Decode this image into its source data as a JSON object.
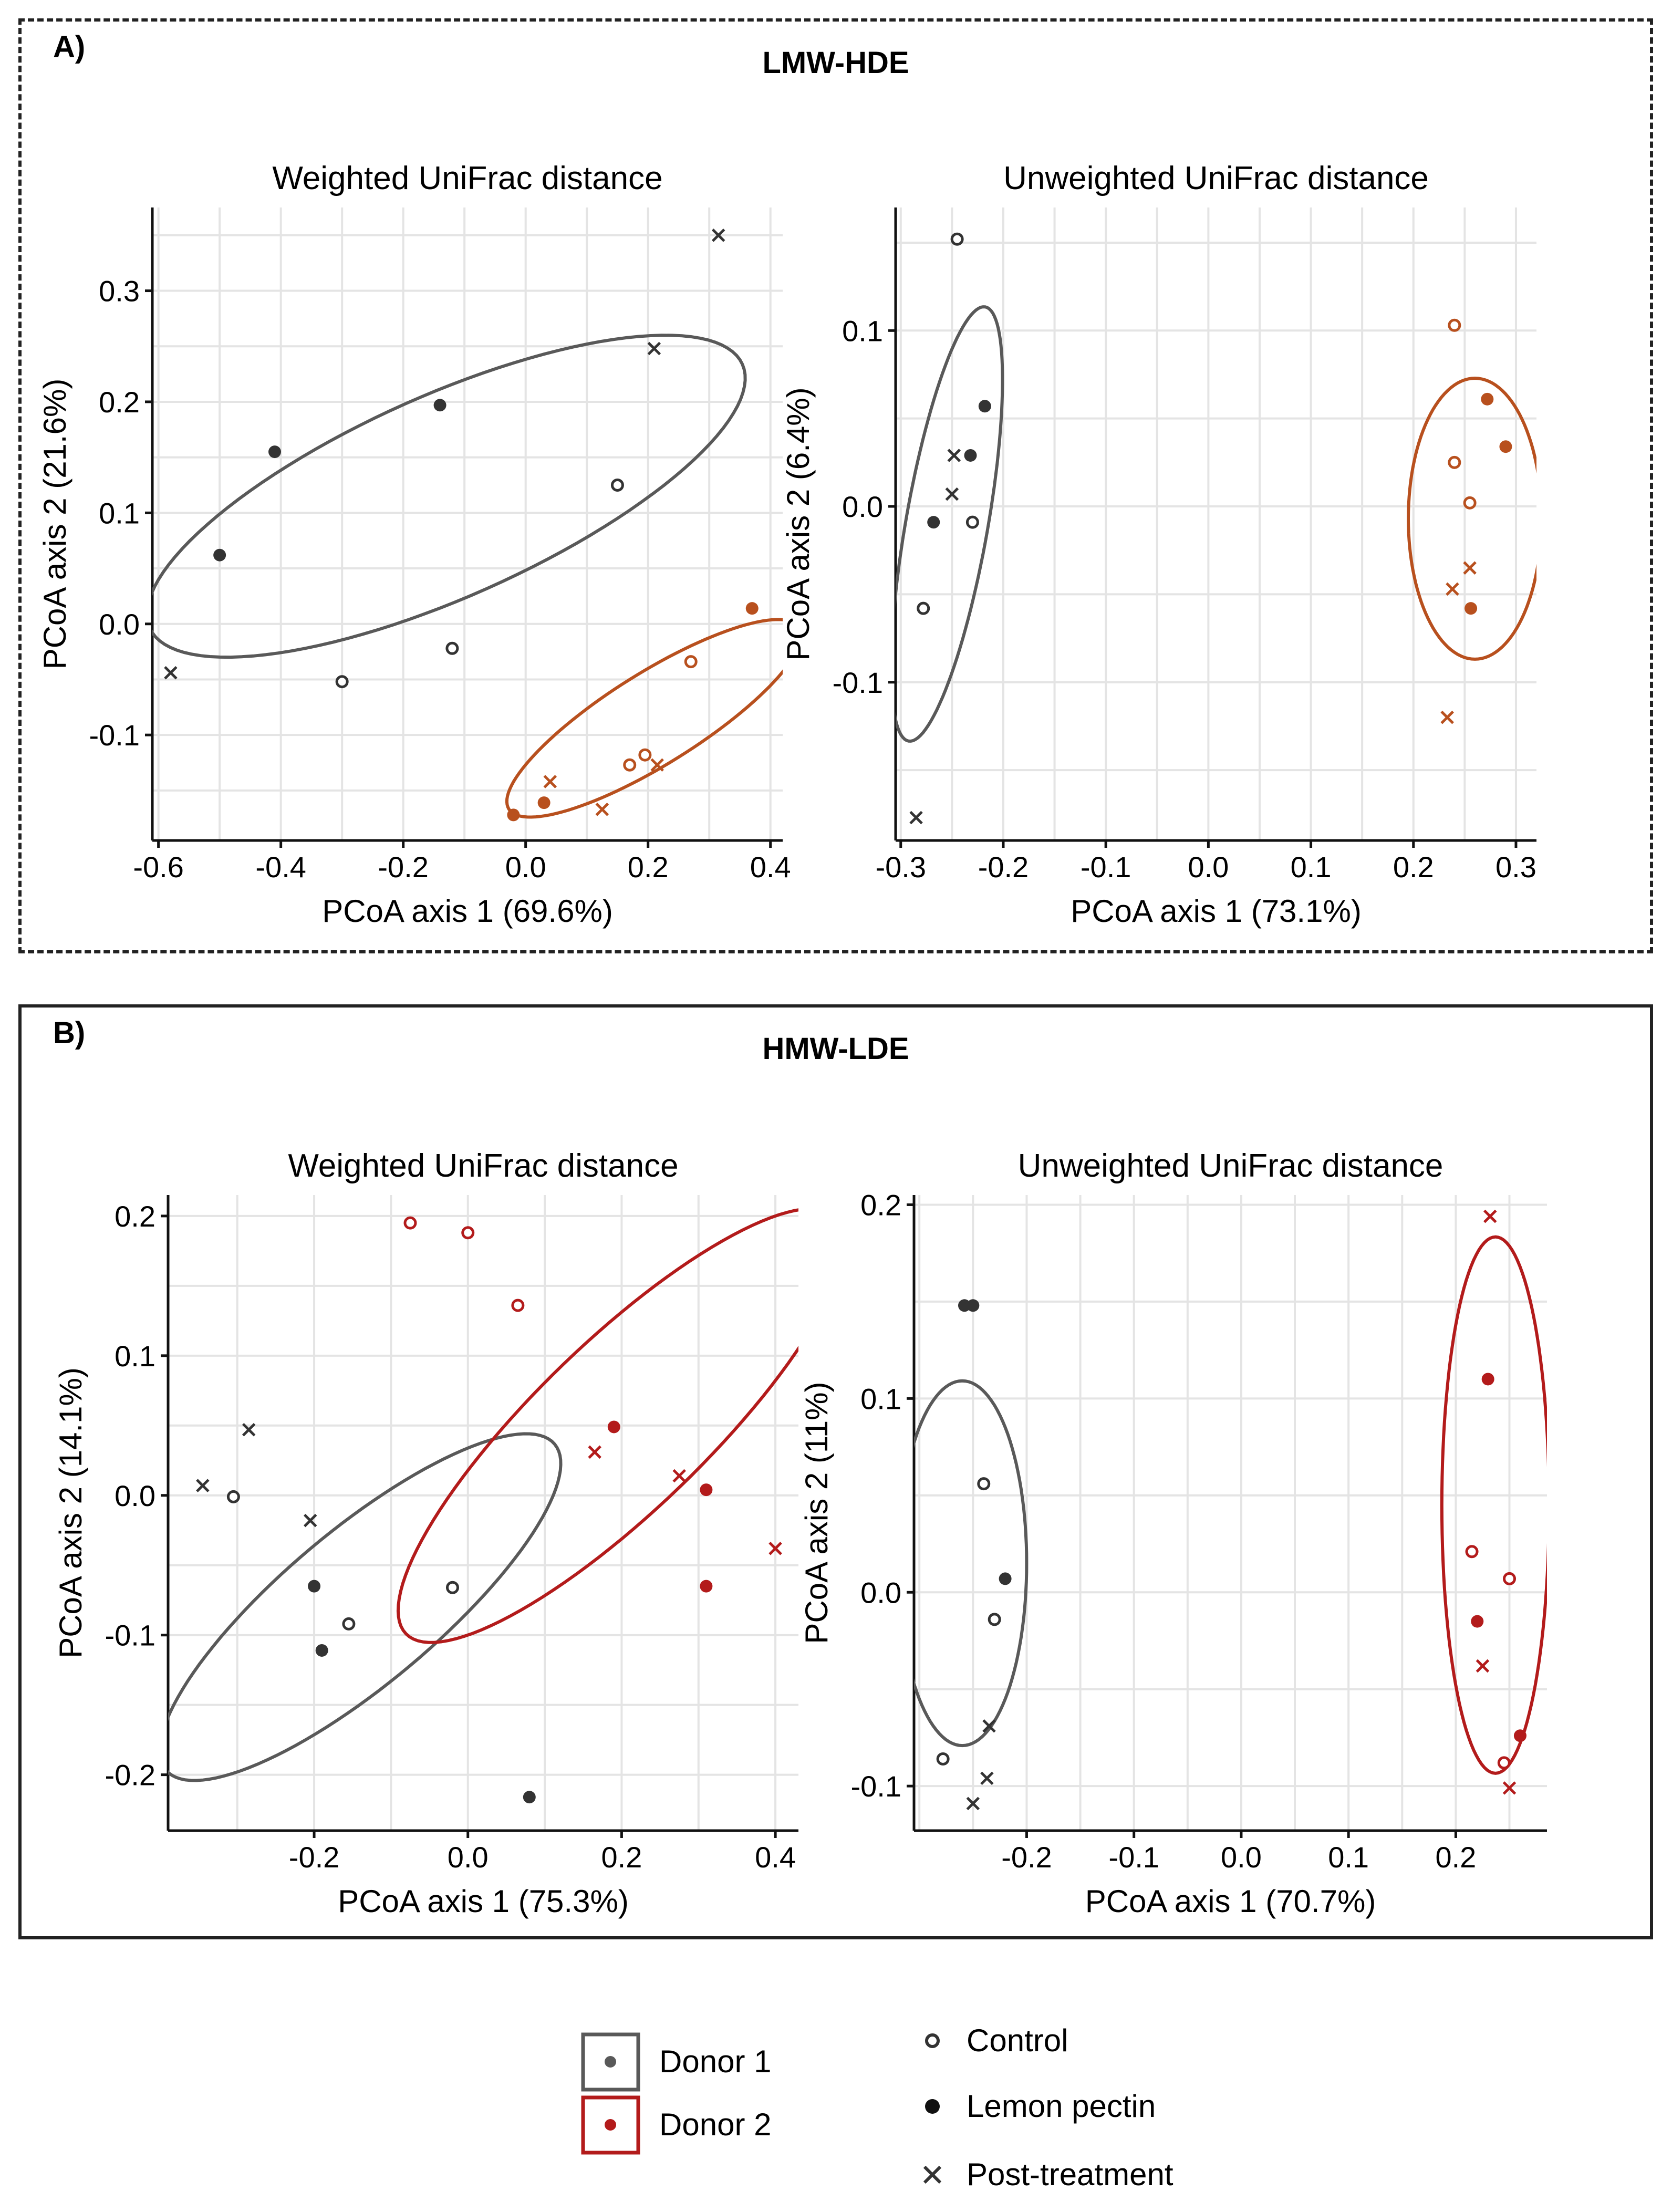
{
  "panels": [
    {
      "letter": "A)",
      "title": "LMW-HDE"
    },
    {
      "letter": "B)",
      "title": "HMW-LDE"
    }
  ],
  "colors": {
    "donor1": "#595959",
    "donor1_point": "#333333",
    "donor2_a": "#b8501e",
    "donor2_b": "#b31b1b"
  },
  "legend": {
    "donors": [
      {
        "label": "Donor 1",
        "color": "#595959"
      },
      {
        "label": "Donor 2",
        "color": "#b31b1b"
      }
    ],
    "treatments": [
      {
        "label": "Control",
        "shape": "circle-open"
      },
      {
        "label": "Lemon pectin",
        "shape": "circle-filled"
      },
      {
        "label": "Post-treatment",
        "shape": "x"
      }
    ]
  },
  "chart_data": [
    {
      "type": "scatter",
      "title": "Weighted UniFrac distance",
      "xlabel": "PCoA axis 1 (69.6%)",
      "ylabel": "PCoA axis 2 (21.6%)",
      "xlim": [
        -0.61,
        0.42
      ],
      "ylim": [
        -0.195,
        0.375
      ],
      "xticks": [
        -0.6,
        -0.4,
        -0.2,
        0.0,
        0.2,
        0.4
      ],
      "xtick_labels": [
        "-0.6",
        "-0.4",
        "-0.2",
        "0.0",
        "0.2",
        "0.4"
      ],
      "yticks": [
        -0.1,
        0.0,
        0.1,
        0.2,
        0.3
      ],
      "ytick_labels": [
        "-0.1",
        "0.0",
        "0.1",
        "0.2",
        "0.3"
      ],
      "grid": true,
      "ellipses": [
        {
          "group": "Donor 1",
          "color": "#595959",
          "cx": -0.13,
          "cy": 0.115,
          "rx": 0.53,
          "ry": 0.165,
          "angle": 24
        },
        {
          "group": "Donor 2",
          "color": "#b8501e",
          "cx": 0.21,
          "cy": -0.085,
          "rx": 0.28,
          "ry": 0.075,
          "angle": 32
        }
      ],
      "series": [
        {
          "name": "Donor 1 Control",
          "donor": "Donor 1",
          "marker": "circle-open",
          "color": "#333333",
          "x": [
            -0.3,
            -0.12,
            0.15
          ],
          "y": [
            -0.052,
            -0.022,
            0.125
          ]
        },
        {
          "name": "Donor 1 Lemon pectin",
          "donor": "Donor 1",
          "marker": "circle-filled",
          "color": "#333333",
          "x": [
            -0.5,
            -0.41,
            -0.14
          ],
          "y": [
            0.062,
            0.155,
            0.197
          ]
        },
        {
          "name": "Donor 1 Post-treatment",
          "donor": "Donor 1",
          "marker": "x",
          "color": "#333333",
          "x": [
            -0.58,
            0.21,
            0.315
          ],
          "y": [
            -0.044,
            0.248,
            0.35
          ]
        },
        {
          "name": "Donor 2 Control",
          "donor": "Donor 2",
          "marker": "circle-open",
          "color": "#b8501e",
          "x": [
            0.17,
            0.195,
            0.27
          ],
          "y": [
            -0.127,
            -0.118,
            -0.034
          ]
        },
        {
          "name": "Donor 2 Lemon pectin",
          "donor": "Donor 2",
          "marker": "circle-filled",
          "color": "#b8501e",
          "x": [
            -0.02,
            0.03,
            0.37
          ],
          "y": [
            -0.172,
            -0.161,
            0.014
          ]
        },
        {
          "name": "Donor 2 Post-treatment",
          "donor": "Donor 2",
          "marker": "x",
          "color": "#b8501e",
          "x": [
            0.04,
            0.125,
            0.215
          ],
          "y": [
            -0.142,
            -0.167,
            -0.127
          ]
        }
      ]
    },
    {
      "type": "scatter",
      "title": "Unweighted UniFrac distance",
      "xlabel": "PCoA axis 1 (73.1%)",
      "ylabel": "PCoA axis 2 (6.4%)",
      "xlim": [
        -0.305,
        0.32
      ],
      "ylim": [
        -0.19,
        0.17
      ],
      "xticks": [
        -0.3,
        -0.2,
        -0.1,
        0.0,
        0.1,
        0.2,
        0.3
      ],
      "xtick_labels": [
        "-0.3",
        "-0.2",
        "-0.1",
        "0.0",
        "0.1",
        "0.2",
        "0.3"
      ],
      "yticks": [
        -0.1,
        0.0,
        0.1
      ],
      "ytick_labels": [
        "-0.1",
        "0.0",
        "0.1"
      ],
      "grid": true,
      "ellipses": [
        {
          "group": "Donor 1",
          "color": "#595959",
          "cx": -0.255,
          "cy": -0.01,
          "rx": 0.215,
          "ry": 0.04,
          "angle": 80
        },
        {
          "group": "Donor 2",
          "color": "#b8501e",
          "cx": 0.26,
          "cy": -0.007,
          "rx": 0.137,
          "ry": 0.065,
          "angle": 90
        }
      ],
      "series": [
        {
          "name": "Donor 1 Control",
          "donor": "Donor 1",
          "marker": "circle-open",
          "color": "#333333",
          "x": [
            -0.245,
            -0.23,
            -0.278
          ],
          "y": [
            0.152,
            -0.009,
            -0.058
          ]
        },
        {
          "name": "Donor 1 Lemon pectin",
          "donor": "Donor 1",
          "marker": "circle-filled",
          "color": "#333333",
          "x": [
            -0.218,
            -0.232,
            -0.268
          ],
          "y": [
            0.057,
            0.029,
            -0.009
          ]
        },
        {
          "name": "Donor 1 Post-treatment",
          "donor": "Donor 1",
          "marker": "x",
          "color": "#333333",
          "x": [
            -0.248,
            -0.25,
            -0.285
          ],
          "y": [
            0.029,
            0.007,
            -0.177
          ]
        },
        {
          "name": "Donor 2 Control",
          "donor": "Donor 2",
          "marker": "circle-open",
          "color": "#b8501e",
          "x": [
            0.24,
            0.24,
            0.255
          ],
          "y": [
            0.103,
            0.025,
            0.002
          ]
        },
        {
          "name": "Donor 2 Lemon pectin",
          "donor": "Donor 2",
          "marker": "circle-filled",
          "color": "#b8501e",
          "x": [
            0.272,
            0.29,
            0.256
          ],
          "y": [
            0.061,
            0.034,
            -0.058
          ]
        },
        {
          "name": "Donor 2 Post-treatment",
          "donor": "Donor 2",
          "marker": "x",
          "color": "#b8501e",
          "x": [
            0.255,
            0.238,
            0.233
          ],
          "y": [
            -0.035,
            -0.047,
            -0.12
          ]
        }
      ]
    },
    {
      "type": "scatter",
      "title": "Weighted UniFrac distance",
      "xlabel": "PCoA axis 1 (75.3%)",
      "ylabel": "PCoA axis 2 (14.1%)",
      "xlim": [
        -0.39,
        0.43
      ],
      "ylim": [
        -0.24,
        0.215
      ],
      "xticks": [
        -0.2,
        0.0,
        0.2,
        0.4
      ],
      "xtick_labels": [
        "-0.2",
        "0.0",
        "0.2",
        "0.4"
      ],
      "yticks": [
        -0.2,
        -0.1,
        0.0,
        0.1,
        0.2
      ],
      "ytick_labels": [
        "-0.2",
        "-0.1",
        "0.0",
        "0.1",
        "0.2"
      ],
      "grid": true,
      "ellipses": [
        {
          "group": "Donor 1",
          "color": "#595959",
          "cx": -0.14,
          "cy": -0.08,
          "rx": 0.33,
          "ry": 0.1,
          "angle": 40
        },
        {
          "group": "Donor 2",
          "color": "#b31b1b",
          "cx": 0.2,
          "cy": 0.05,
          "rx": 0.39,
          "ry": 0.11,
          "angle": 44
        }
      ],
      "series": [
        {
          "name": "Donor 1 Control",
          "donor": "Donor 1",
          "marker": "circle-open",
          "color": "#333333",
          "x": [
            -0.305,
            -0.155,
            -0.02
          ],
          "y": [
            -0.001,
            -0.092,
            -0.066
          ]
        },
        {
          "name": "Donor 1 Lemon pectin",
          "donor": "Donor 1",
          "marker": "circle-filled",
          "color": "#333333",
          "x": [
            -0.2,
            -0.19,
            0.08
          ],
          "y": [
            -0.065,
            -0.111,
            -0.216
          ]
        },
        {
          "name": "Donor 1 Post-treatment",
          "donor": "Donor 1",
          "marker": "x",
          "color": "#333333",
          "x": [
            -0.345,
            -0.285,
            -0.205
          ],
          "y": [
            0.007,
            0.047,
            -0.018
          ]
        },
        {
          "name": "Donor 2 Control",
          "donor": "Donor 2",
          "marker": "circle-open",
          "color": "#b31b1b",
          "x": [
            -0.075,
            0.0,
            0.065
          ],
          "y": [
            0.195,
            0.188,
            0.136
          ]
        },
        {
          "name": "Donor 2 Lemon pectin",
          "donor": "Donor 2",
          "marker": "circle-filled",
          "color": "#b31b1b",
          "x": [
            0.19,
            0.31,
            0.31
          ],
          "y": [
            0.049,
            0.004,
            -0.065
          ]
        },
        {
          "name": "Donor 2 Post-treatment",
          "donor": "Donor 2",
          "marker": "x",
          "color": "#b31b1b",
          "x": [
            0.165,
            0.275,
            0.4
          ],
          "y": [
            0.031,
            0.014,
            -0.038
          ]
        }
      ]
    },
    {
      "type": "scatter",
      "title": "Unweighted UniFrac distance",
      "xlabel": "PCoA axis 1 (70.7%)",
      "ylabel": "PCoA axis 2 (11%)",
      "xlim": [
        -0.305,
        0.285
      ],
      "ylim": [
        -0.123,
        0.205
      ],
      "xticks": [
        -0.2,
        -0.1,
        0.0,
        0.1,
        0.2
      ],
      "xtick_labels": [
        "-0.2",
        "-0.1",
        "0.0",
        "0.1",
        "0.2"
      ],
      "yticks": [
        -0.1,
        0.0,
        0.1,
        0.2
      ],
      "ytick_labels": [
        "-0.1",
        "0.0",
        "0.1",
        "0.2"
      ],
      "grid": true,
      "ellipses": [
        {
          "group": "Donor 1",
          "color": "#595959",
          "cx": -0.26,
          "cy": 0.015,
          "rx": 0.17,
          "ry": 0.06,
          "angle": 90
        },
        {
          "group": "Donor 2",
          "color": "#b31b1b",
          "cx": 0.237,
          "cy": 0.045,
          "rx": 0.25,
          "ry": 0.05,
          "angle": 90
        }
      ],
      "series": [
        {
          "name": "Donor 1 Control",
          "donor": "Donor 1",
          "marker": "circle-open",
          "color": "#333333",
          "x": [
            -0.24,
            -0.23,
            -0.278
          ],
          "y": [
            0.056,
            -0.014,
            -0.086
          ]
        },
        {
          "name": "Donor 1 Lemon pectin",
          "donor": "Donor 1",
          "marker": "circle-filled",
          "color": "#333333",
          "x": [
            -0.258,
            -0.25,
            -0.22
          ],
          "y": [
            0.148,
            0.148,
            0.007
          ]
        },
        {
          "name": "Donor 1 Post-treatment",
          "donor": "Donor 1",
          "marker": "x",
          "color": "#333333",
          "x": [
            -0.235,
            -0.237,
            -0.25
          ],
          "y": [
            -0.069,
            -0.096,
            -0.109
          ]
        },
        {
          "name": "Donor 2 Control",
          "donor": "Donor 2",
          "marker": "circle-open",
          "color": "#b31b1b",
          "x": [
            0.215,
            0.25,
            0.245
          ],
          "y": [
            0.021,
            0.007,
            -0.088
          ]
        },
        {
          "name": "Donor 2 Lemon pectin",
          "donor": "Donor 2",
          "marker": "circle-filled",
          "color": "#b31b1b",
          "x": [
            0.23,
            0.22,
            0.26
          ],
          "y": [
            0.11,
            -0.015,
            -0.074
          ]
        },
        {
          "name": "Donor 2 Post-treatment",
          "donor": "Donor 2",
          "marker": "x",
          "color": "#b31b1b",
          "x": [
            0.232,
            0.225,
            0.25
          ],
          "y": [
            0.194,
            -0.038,
            -0.101
          ]
        }
      ]
    }
  ]
}
